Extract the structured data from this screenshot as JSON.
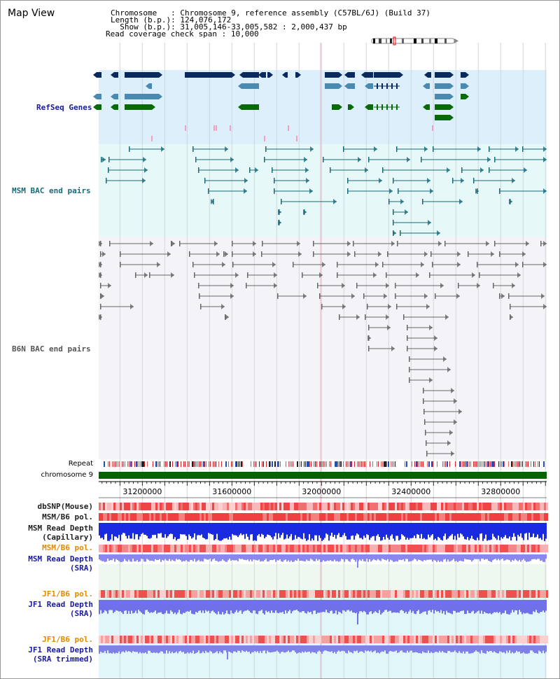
{
  "header": {
    "title": "Map View",
    "info": [
      {
        "key": "Chromosome   ",
        "sep": ": ",
        "value": "Chromosome 9, reference assembly (C57BL/6J) (Build 37)"
      },
      {
        "key": "Length (b.p.)",
        "sep": ": ",
        "value": "124,076,172"
      },
      {
        "key": "  Show (b.p.)",
        "sep": ": ",
        "value": "31,005,146-33,005,582 : 2,000,437 bp"
      },
      {
        "key": "Read coverage check span",
        "sep": " : ",
        "value": "10,000"
      }
    ]
  },
  "region": {
    "start": 31005146,
    "end": 33005582
  },
  "axis": {
    "ticks": [
      31200000,
      31600000,
      32000000,
      32400000,
      32800000
    ]
  },
  "tracks": {
    "refseq": {
      "label": "RefSeq Genes",
      "color_dark": "#0a2a5e",
      "color_mid": "#4a8ab0",
      "color_green": "#0a6a0a",
      "bg": "#dceffa"
    },
    "msm_bac": {
      "label": "MSM BAC end pairs",
      "color": "#1a6a7a",
      "bg": "#e6f8f8"
    },
    "b6n_bac": {
      "label": "B6N BAC end pairs",
      "color": "#555555",
      "bg": "#f4f4f8"
    },
    "repeat": {
      "label": "Repeat"
    },
    "chromosome": {
      "label": "chromosome 9",
      "color": "#006400"
    },
    "dbsnp": {
      "label": "dbSNP(Mouse)",
      "color": "#222222"
    },
    "msm_pol_cap": {
      "label": "MSM/B6 pol.",
      "color": "#222222"
    },
    "msm_depth_cap": {
      "label": "MSM Read Depth",
      "sublabel": "(Capillary)",
      "color": "#222222"
    },
    "msm_pol_sra": {
      "label": "MSM/B6 pol.",
      "color": "#e08a00"
    },
    "msm_depth_sra": {
      "label": "MSM Read Depth",
      "sublabel": "(SRA)",
      "color": "#1a1aa0"
    },
    "jf1_pol_sra": {
      "label": "JF1/B6 pol.",
      "color": "#e08a00"
    },
    "jf1_depth_sra": {
      "label": "JF1 Read Depth",
      "sublabel": "(SRA)",
      "color": "#1a1aa0"
    },
    "jf1_pol_trim": {
      "label": "JF1/B6 pol.",
      "color": "#e08a00"
    },
    "jf1_depth_trim": {
      "label": "JF1 Read Depth",
      "sublabel": "(SRA trimmed)",
      "color": "#1a1aa0"
    }
  }
}
